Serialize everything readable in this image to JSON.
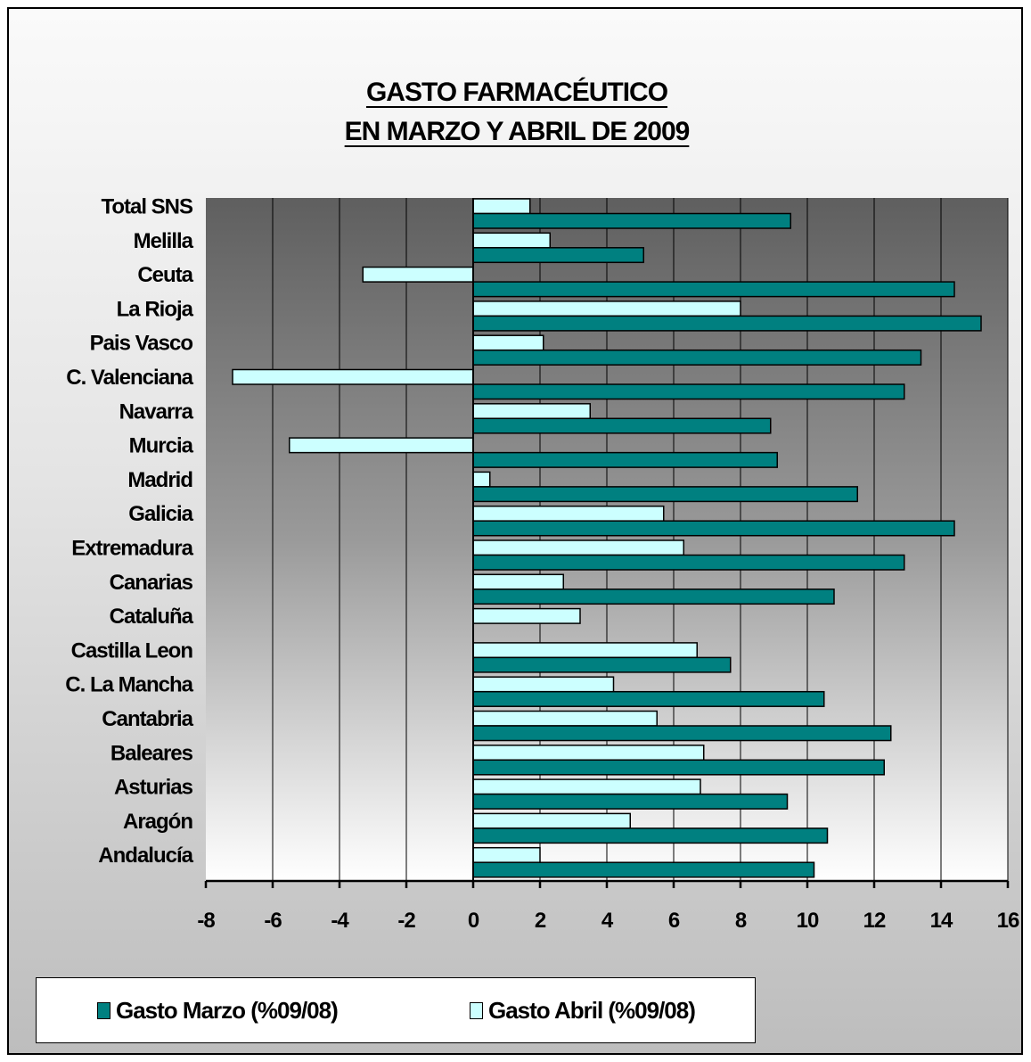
{
  "chart_data": {
    "type": "bar",
    "orientation": "horizontal",
    "title": [
      "GASTO FARMACÉUTICO",
      "EN MARZO Y ABRIL DE 2009"
    ],
    "categories": [
      "Total SNS",
      "Melilla",
      "Ceuta",
      "La Rioja",
      "Pais Vasco",
      "C. Valenciana",
      "Navarra",
      "Murcia",
      "Madrid",
      "Galicia",
      "Extremadura",
      "Canarias",
      "Cataluña",
      "Castilla Leon",
      "C. La Mancha",
      "Cantabria",
      "Baleares",
      "Asturias",
      "Aragón",
      "Andalucía"
    ],
    "series": [
      {
        "name": "Gasto Abril (%09/08)",
        "color": "#ccffff",
        "values": [
          1.7,
          2.3,
          -3.3,
          8.0,
          2.1,
          -7.2,
          3.5,
          -5.5,
          0.5,
          5.7,
          6.3,
          2.7,
          3.2,
          6.7,
          4.2,
          5.5,
          6.9,
          6.8,
          4.7,
          2.0
        ]
      },
      {
        "name": "Gasto Marzo (%09/08)",
        "color": "#008080",
        "values": [
          9.5,
          5.1,
          14.4,
          15.2,
          13.4,
          12.9,
          8.9,
          9.1,
          11.5,
          14.4,
          12.9,
          10.8,
          null,
          7.7,
          10.5,
          12.5,
          12.3,
          9.4,
          10.6,
          10.2
        ]
      }
    ],
    "xlim": [
      -8,
      16
    ],
    "xticks": [
      "-8",
      "-6",
      "-4",
      "-2",
      "0",
      "2",
      "4",
      "6",
      "8",
      "10",
      "12",
      "14",
      "16"
    ],
    "grid": true,
    "legend_position": "bottom"
  },
  "legend": {
    "march_label": "Gasto Marzo (%09/08)",
    "april_label": "Gasto Abril (%09/08)"
  },
  "colors": {
    "marzo": "#008080",
    "abril": "#ccffff",
    "plot_top": "#666666",
    "plot_bottom": "#ffffff"
  }
}
